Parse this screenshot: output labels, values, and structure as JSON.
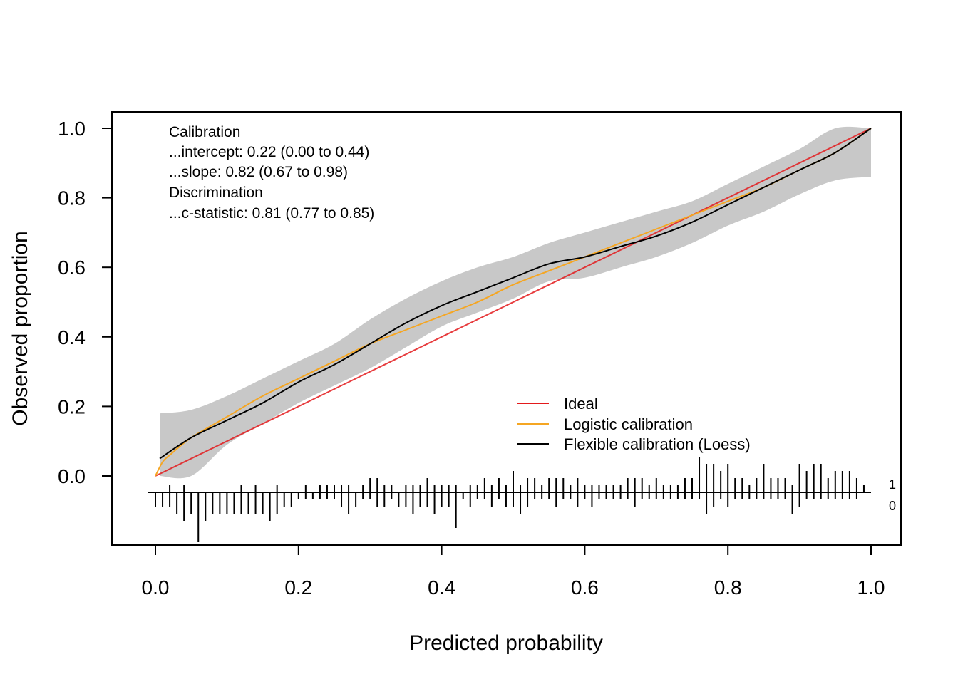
{
  "chart_data": {
    "type": "line",
    "xlabel": "Predicted probability",
    "ylabel": "Observed proportion",
    "xlim": [
      0,
      1
    ],
    "ylim": [
      0,
      1
    ],
    "x_ticks": [
      "0.0",
      "0.2",
      "0.4",
      "0.6",
      "0.8",
      "1.0"
    ],
    "y_ticks": [
      "0.0",
      "0.2",
      "0.4",
      "0.6",
      "0.8",
      "1.0"
    ],
    "grid": false,
    "legend_position": "bottom-right",
    "annotations": [
      "Calibration",
      "...intercept: 0.22 (0.00 to 0.44)",
      "...slope: 0.82 (0.67 to 0.98)",
      "Discrimination",
      "...c-statistic: 0.81 (0.77 to 0.85)"
    ],
    "colors": {
      "ideal": "#e31a1c",
      "logistic": "#f5a623",
      "flexible": "#000000",
      "band": "#c8c8c8"
    },
    "series": [
      {
        "name": "Ideal",
        "x": [
          0.0,
          1.0
        ],
        "y": [
          0.0,
          1.0
        ]
      },
      {
        "name": "Logistic calibration",
        "x": [
          0.0,
          0.01,
          0.02,
          0.05,
          0.1,
          0.15,
          0.2,
          0.25,
          0.3,
          0.35,
          0.4,
          0.45,
          0.5,
          0.55,
          0.6,
          0.65,
          0.7,
          0.75,
          0.8,
          0.85,
          0.9,
          0.95,
          1.0
        ],
        "y": [
          0.0,
          0.04,
          0.06,
          0.11,
          0.17,
          0.23,
          0.28,
          0.33,
          0.38,
          0.42,
          0.46,
          0.5,
          0.55,
          0.59,
          0.63,
          0.67,
          0.71,
          0.75,
          0.79,
          0.83,
          0.88,
          0.93,
          1.0
        ]
      },
      {
        "name": "Flexible calibration (Loess)",
        "x": [
          0.006,
          0.05,
          0.1,
          0.15,
          0.2,
          0.25,
          0.3,
          0.35,
          0.4,
          0.45,
          0.5,
          0.55,
          0.6,
          0.65,
          0.7,
          0.75,
          0.8,
          0.85,
          0.9,
          0.95,
          1.0
        ],
        "y": [
          0.05,
          0.11,
          0.16,
          0.21,
          0.27,
          0.32,
          0.38,
          0.44,
          0.49,
          0.53,
          0.57,
          0.61,
          0.63,
          0.66,
          0.69,
          0.73,
          0.78,
          0.83,
          0.88,
          0.93,
          1.0
        ]
      }
    ],
    "confidence_band": {
      "x": [
        0.006,
        0.05,
        0.1,
        0.15,
        0.2,
        0.25,
        0.3,
        0.35,
        0.4,
        0.45,
        0.5,
        0.55,
        0.6,
        0.65,
        0.7,
        0.75,
        0.8,
        0.85,
        0.9,
        0.95,
        1.0
      ],
      "lower": [
        0.0,
        0.0,
        0.09,
        0.15,
        0.21,
        0.26,
        0.31,
        0.37,
        0.43,
        0.47,
        0.51,
        0.56,
        0.57,
        0.6,
        0.63,
        0.67,
        0.72,
        0.76,
        0.81,
        0.85,
        0.86
      ],
      "upper": [
        0.18,
        0.19,
        0.23,
        0.28,
        0.33,
        0.38,
        0.45,
        0.51,
        0.56,
        0.6,
        0.63,
        0.67,
        0.7,
        0.73,
        0.76,
        0.79,
        0.84,
        0.89,
        0.94,
        1.0,
        1.0
      ]
    },
    "rug": {
      "labels": [
        "1",
        "0"
      ],
      "x": [
        0.0,
        0.01,
        0.02,
        0.03,
        0.04,
        0.05,
        0.06,
        0.07,
        0.08,
        0.09,
        0.1,
        0.11,
        0.12,
        0.13,
        0.14,
        0.15,
        0.16,
        0.17,
        0.18,
        0.19,
        0.2,
        0.21,
        0.22,
        0.23,
        0.24,
        0.25,
        0.26,
        0.27,
        0.28,
        0.29,
        0.3,
        0.31,
        0.32,
        0.33,
        0.34,
        0.35,
        0.36,
        0.37,
        0.38,
        0.39,
        0.4,
        0.41,
        0.42,
        0.43,
        0.44,
        0.45,
        0.46,
        0.47,
        0.48,
        0.49,
        0.5,
        0.51,
        0.52,
        0.53,
        0.54,
        0.55,
        0.56,
        0.57,
        0.58,
        0.59,
        0.6,
        0.61,
        0.62,
        0.63,
        0.64,
        0.65,
        0.66,
        0.67,
        0.68,
        0.69,
        0.7,
        0.71,
        0.72,
        0.73,
        0.74,
        0.75,
        0.76,
        0.77,
        0.78,
        0.79,
        0.8,
        0.81,
        0.82,
        0.83,
        0.84,
        0.85,
        0.86,
        0.87,
        0.88,
        0.89,
        0.9,
        0.91,
        0.92,
        0.93,
        0.94,
        0.95,
        0.96,
        0.97,
        0.98,
        0.99
      ],
      "events": [
        0,
        0,
        1,
        0,
        1,
        0,
        0,
        0,
        0,
        0,
        0,
        0,
        1,
        0,
        1,
        0,
        0,
        1,
        0,
        0,
        0,
        1,
        0,
        1,
        1,
        1,
        1,
        1,
        0,
        1,
        2,
        2,
        1,
        1,
        0,
        1,
        1,
        1,
        2,
        1,
        1,
        1,
        1,
        0,
        1,
        1,
        2,
        1,
        2,
        1,
        3,
        1,
        2,
        2,
        1,
        2,
        2,
        2,
        1,
        2,
        1,
        1,
        1,
        1,
        1,
        1,
        2,
        2,
        2,
        1,
        2,
        1,
        1,
        1,
        2,
        2,
        5,
        4,
        4,
        3,
        4,
        2,
        2,
        1,
        2,
        4,
        2,
        2,
        2,
        1,
        4,
        3,
        4,
        4,
        2,
        3,
        3,
        3,
        2,
        1
      ],
      "nonevents": [
        2,
        2,
        2,
        3,
        4,
        3,
        7,
        4,
        3,
        3,
        3,
        3,
        3,
        3,
        3,
        3,
        4,
        3,
        2,
        2,
        1,
        1,
        1,
        1,
        1,
        1,
        2,
        3,
        2,
        1,
        1,
        2,
        2,
        1,
        2,
        2,
        3,
        2,
        2,
        3,
        2,
        2,
        5,
        1,
        2,
        1,
        1,
        2,
        1,
        2,
        2,
        3,
        2,
        1,
        1,
        1,
        2,
        1,
        1,
        2,
        1,
        2,
        1,
        1,
        1,
        1,
        1,
        2,
        1,
        1,
        1,
        1,
        1,
        1,
        1,
        1,
        1,
        3,
        2,
        1,
        2,
        1,
        1,
        1,
        1,
        1,
        1,
        1,
        1,
        3,
        2,
        1,
        1,
        1,
        1,
        1,
        1,
        1,
        1,
        0
      ]
    }
  }
}
